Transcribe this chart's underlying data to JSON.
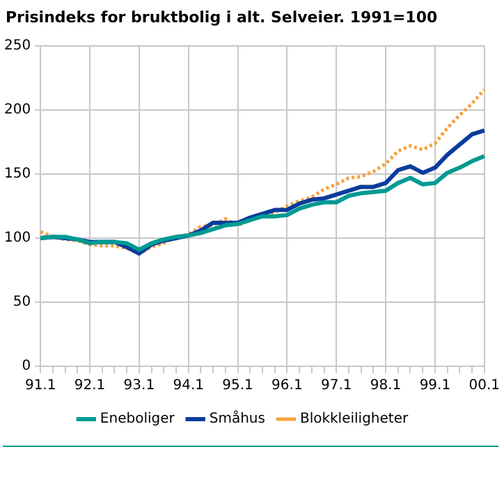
{
  "chart_data": {
    "type": "line",
    "title": "Prisindeks for bruktbolig i alt. Selveier. 1991=100",
    "categories": [
      "91.1",
      null,
      null,
      null,
      "92.1",
      null,
      null,
      null,
      "93.1",
      null,
      null,
      null,
      "94.1",
      null,
      null,
      null,
      "95.1",
      null,
      null,
      null,
      "96.1",
      null,
      null,
      null,
      "97.1",
      null,
      null,
      null,
      "98.1",
      null,
      null,
      null,
      "99.1",
      null,
      null,
      null,
      "00.1"
    ],
    "series": [
      {
        "name": "Eneboliger",
        "color": "#009a93",
        "line_style": "solid",
        "values": [
          100,
          101,
          101,
          99,
          96,
          97,
          97,
          96,
          91,
          96,
          99,
          101,
          102,
          104,
          107,
          110,
          111,
          114,
          117,
          117,
          118,
          123,
          126,
          128,
          128,
          133,
          135,
          136,
          137,
          143,
          147,
          142,
          143,
          151,
          155,
          160,
          164
        ]
      },
      {
        "name": "Småhus",
        "color": "#0a3c9c",
        "line_style": "solid",
        "values": [
          100,
          101,
          100,
          99,
          97,
          97,
          97,
          93,
          88,
          95,
          98,
          100,
          102,
          106,
          112,
          112,
          112,
          116,
          119,
          122,
          122,
          127,
          130,
          131,
          134,
          137,
          140,
          140,
          143,
          153,
          156,
          151,
          155,
          165,
          173,
          181,
          184
        ]
      },
      {
        "name": "Blokkleiligheter",
        "color": "#f7a13e",
        "line_style": "dotted",
        "values": [
          105,
          101,
          99,
          98,
          95,
          94,
          94,
          92,
          88,
          93,
          96,
          101,
          103,
          109,
          110,
          115,
          110,
          114,
          118,
          120,
          125,
          129,
          132,
          138,
          142,
          147,
          148,
          152,
          158,
          168,
          172,
          169,
          174,
          186,
          196,
          205,
          216
        ]
      }
    ],
    "ylim": [
      0,
      250
    ],
    "yticks": [
      0,
      50,
      100,
      150,
      200,
      250
    ],
    "grid": true,
    "legend": "bottom",
    "marker": "none"
  }
}
